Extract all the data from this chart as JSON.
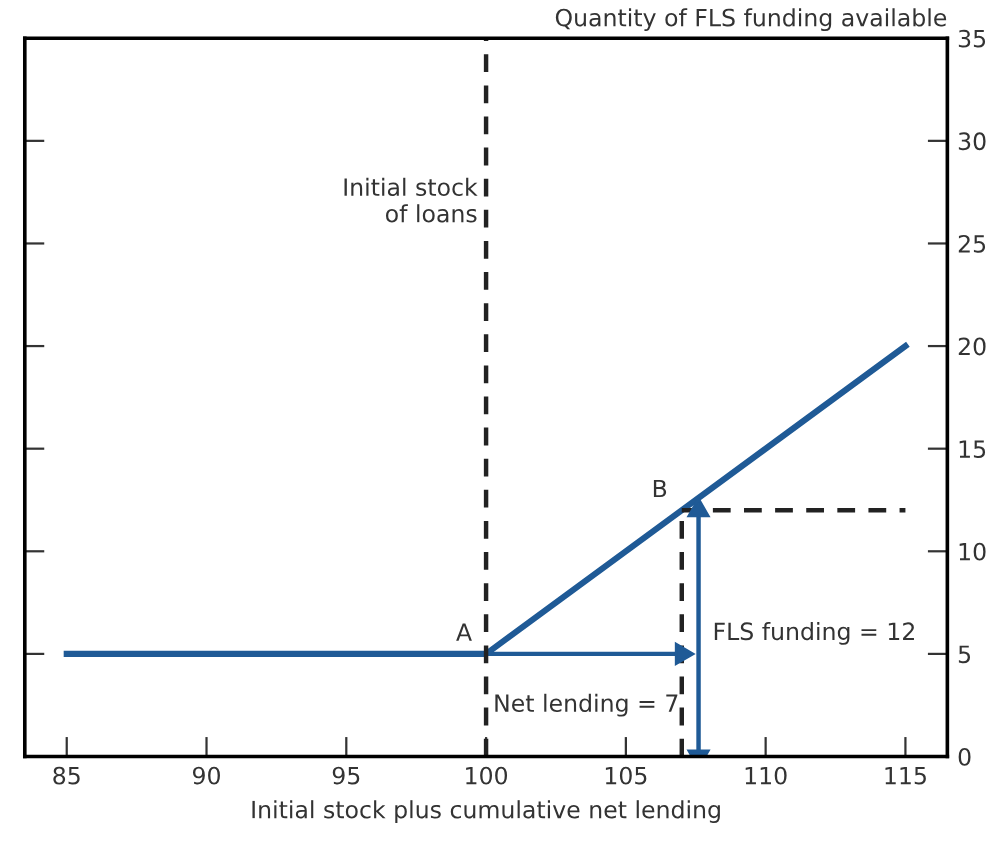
{
  "chart_data": {
    "type": "line",
    "xlabel": "Initial stock plus cumulative net lending",
    "ylabel": "Quantity of FLS funding available",
    "xlim": [
      83.5,
      116.5
    ],
    "xticks": [
      85,
      90,
      95,
      100,
      105,
      110,
      115
    ],
    "ylim": [
      0,
      35
    ],
    "yticks": [
      0,
      5,
      10,
      15,
      20,
      25,
      30,
      35
    ],
    "grid": false,
    "series": [
      {
        "x": [
          85,
          100,
          115
        ],
        "values": [
          5,
          5,
          20
        ],
        "color": "#1f5a96",
        "line_style": "solid",
        "marker": "none"
      },
      {
        "x": [
          107,
          107
        ],
        "values": [
          0,
          12
        ],
        "color": "#222222",
        "line_style": "dashed",
        "marker": "none"
      },
      {
        "x": [
          107,
          115
        ],
        "values": [
          12,
          12
        ],
        "color": "#222222",
        "line_style": "dashed",
        "marker": "none"
      },
      {
        "x": [
          100,
          107
        ],
        "values": [
          5,
          5
        ],
        "color": "#1f5a96",
        "line_style": "solid",
        "marker": "triangle"
      },
      {
        "x": [
          107.6,
          107.6
        ],
        "values": [
          0,
          12
        ],
        "color": "#1f5a96",
        "line_style": "solid",
        "marker": "triangle"
      }
    ],
    "ref_lines": [
      {
        "axis": "x",
        "value": 100,
        "label": "Initial stock\nof loans",
        "color": "#222222",
        "line_style": "dashed"
      }
    ],
    "annotations": [
      {
        "text": "A",
        "x": 100,
        "y": 5
      },
      {
        "text": "B",
        "x": 107,
        "y": 12
      },
      {
        "text": "Net lending = 7",
        "x": 100,
        "y": 2.5
      },
      {
        "text": "FLS funding = 12",
        "x": 107.6,
        "y": 6
      }
    ]
  }
}
